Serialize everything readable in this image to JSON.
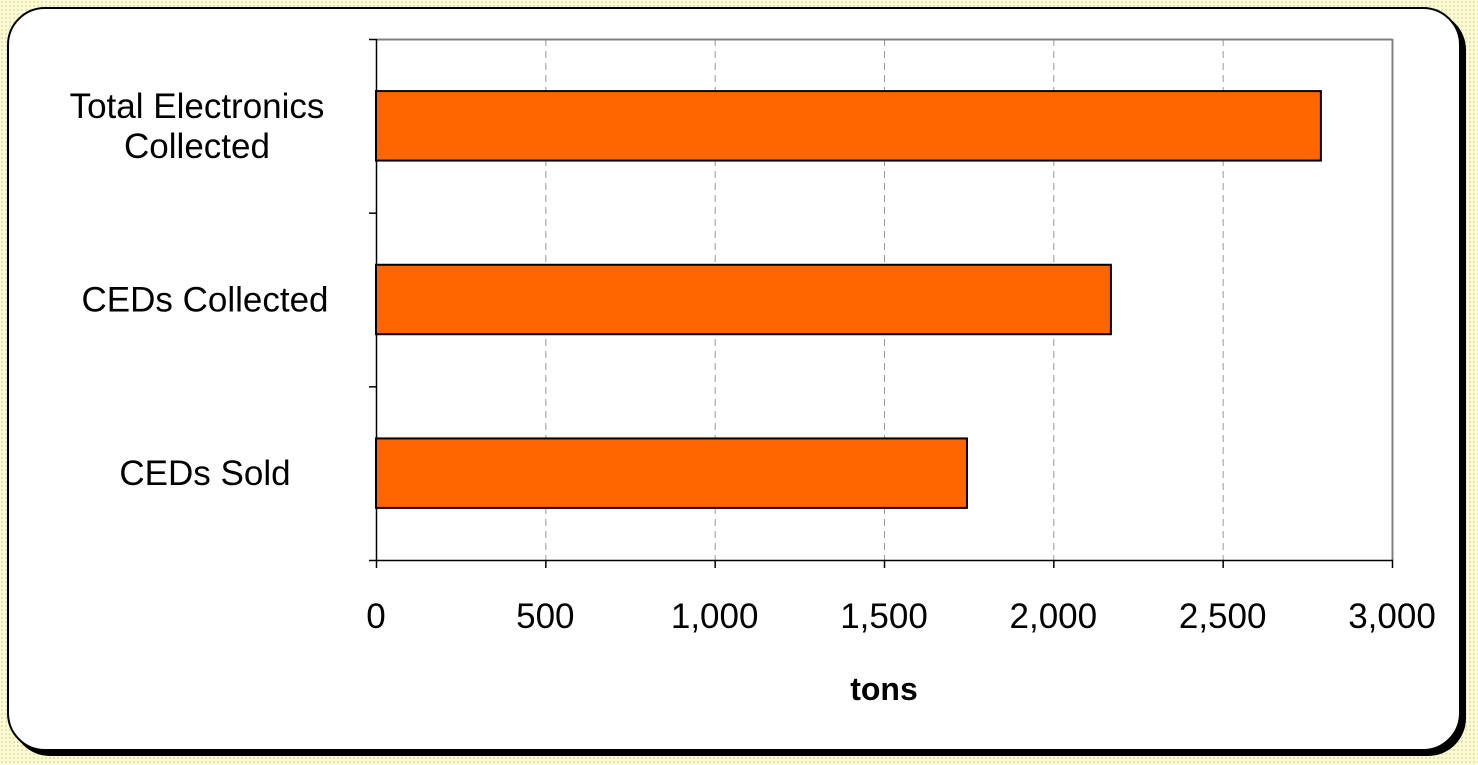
{
  "chart_data": {
    "type": "bar",
    "orientation": "horizontal",
    "categories": [
      "Total Electronics Collected",
      "CEDs Collected",
      "CEDs Sold"
    ],
    "category_label_lines": [
      [
        "Total Electronics",
        "Collected"
      ],
      [
        "CEDs Collected"
      ],
      [
        "CEDs Sold"
      ]
    ],
    "values": [
      2790,
      2170,
      1745
    ],
    "xlabel": "tons",
    "ylabel": "",
    "xlim": [
      0,
      3000
    ],
    "x_ticks": [
      0,
      500,
      1000,
      1500,
      2000,
      2500,
      3000
    ],
    "x_tick_labels": [
      "0",
      "500",
      "1,000",
      "1,500",
      "2,000",
      "2,500",
      "3,000"
    ],
    "grid": "vertical dashed",
    "legend": "none",
    "colors": {
      "bar_fill": "#ff6600",
      "bar_stroke": "#000000",
      "grid": "#999999",
      "plot_border": "#808080"
    }
  }
}
